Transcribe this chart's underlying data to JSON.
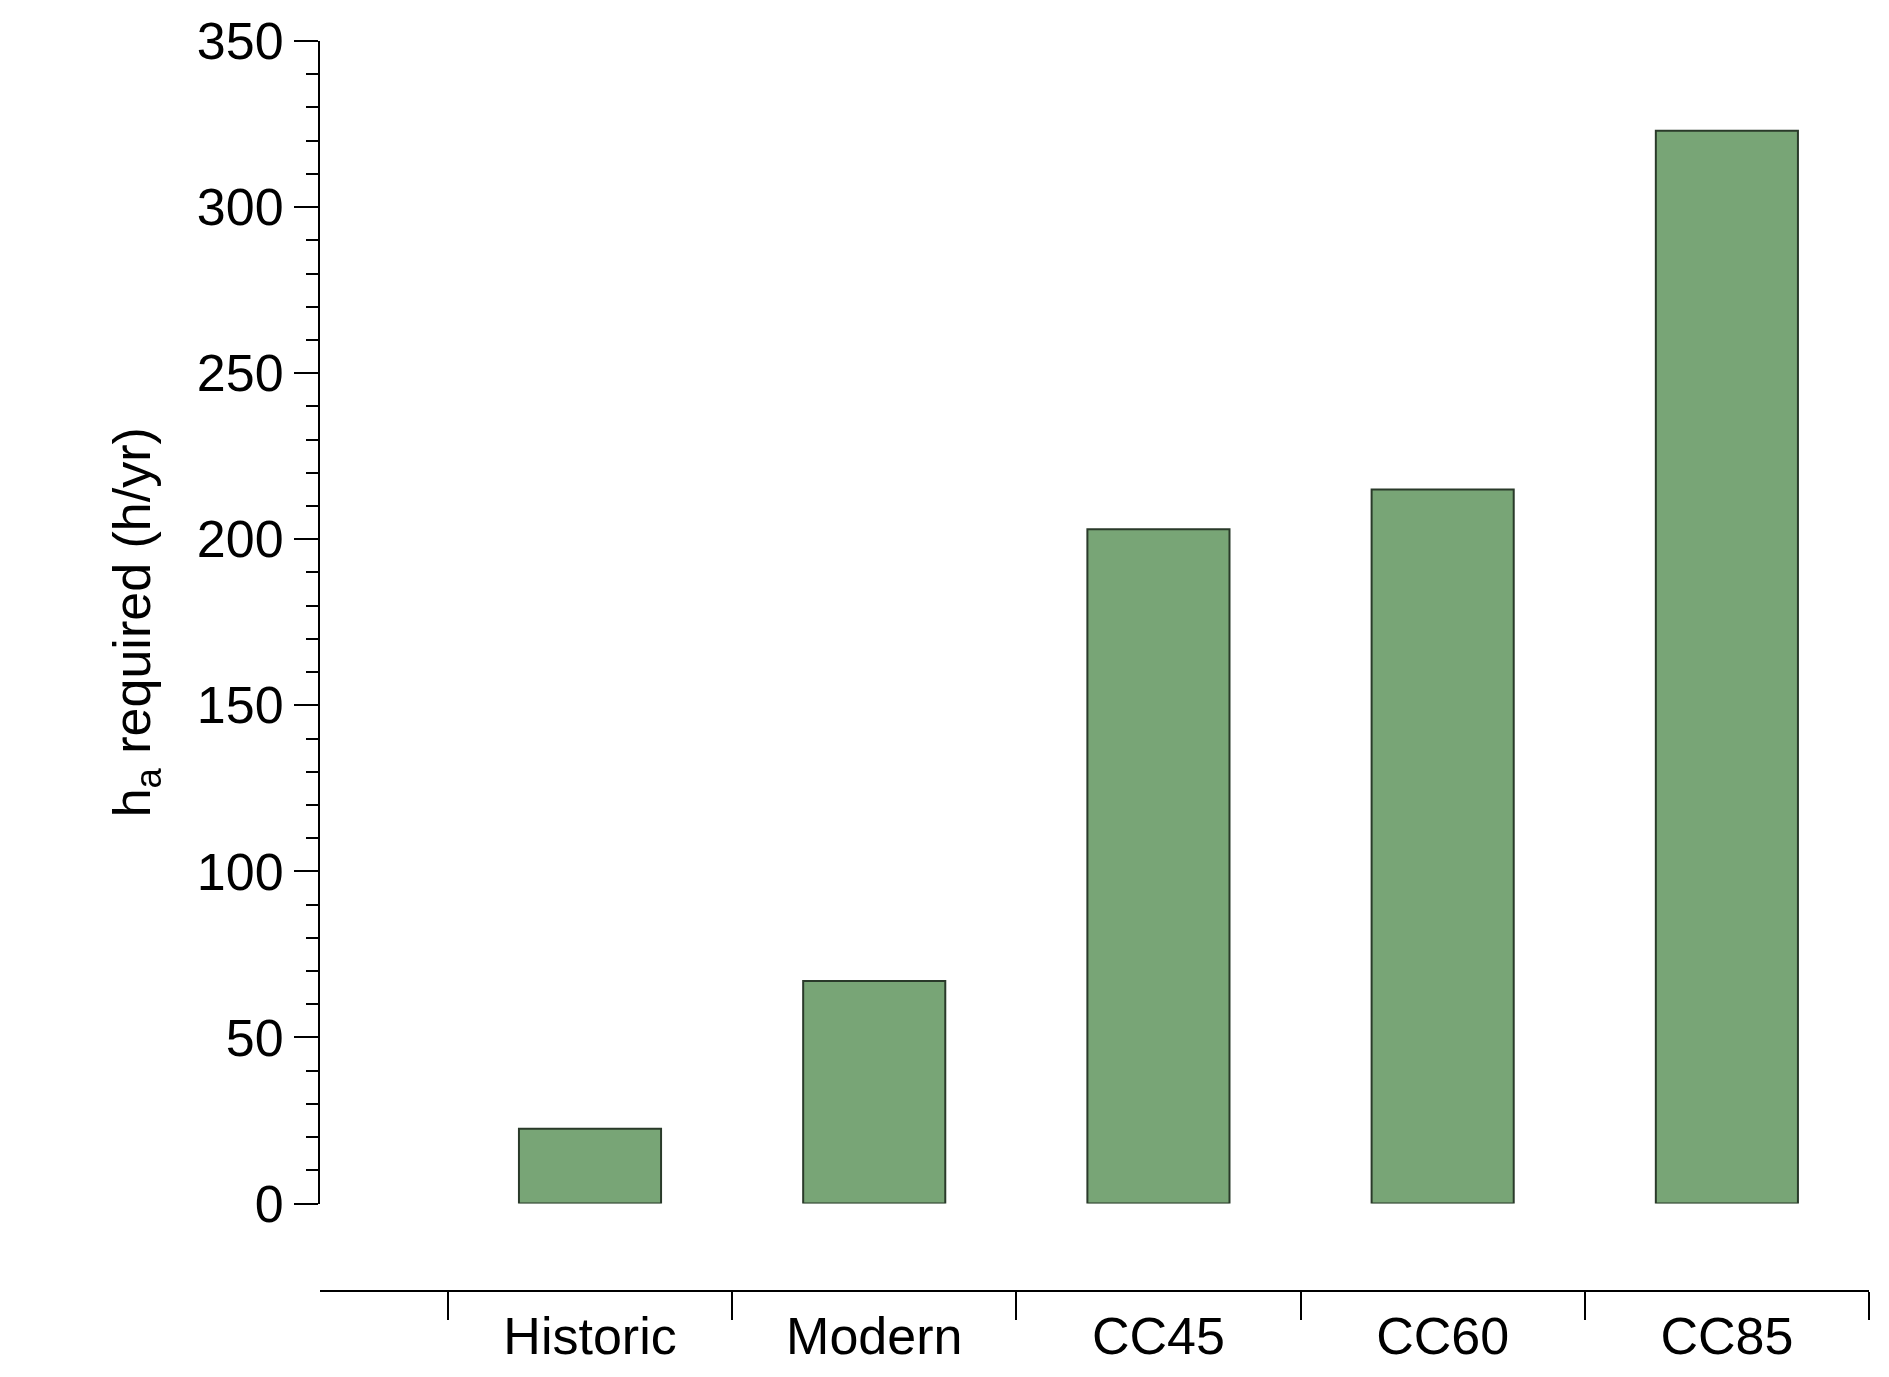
{
  "chart_data": {
    "type": "bar",
    "ylabel": "h$_{a}$ required (h/yr)",
    "categories": [
      "Historic",
      "Modern",
      "CC45",
      "CC60",
      "CC85"
    ],
    "values": [
      22.5,
      67,
      203,
      215,
      323
    ],
    "color": "#78a576",
    "ylim": [
      0,
      350
    ],
    "yticks": [
      0,
      50,
      100,
      150,
      200,
      250,
      300,
      350
    ],
    "grid": false
  }
}
